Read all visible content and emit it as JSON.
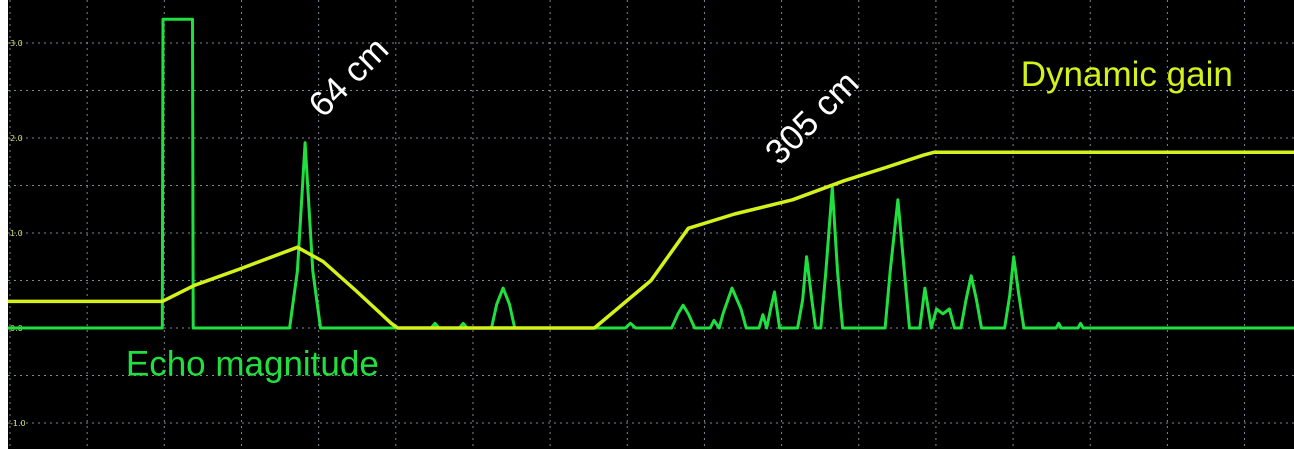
{
  "chart_data": {
    "type": "line",
    "title": "",
    "xlabel": "",
    "ylabel": "",
    "ylim": [
      -1.1,
      3.3
    ],
    "xlim": [
      0,
      100
    ],
    "grid": true,
    "y_ticks": [
      {
        "value": 3.0,
        "label": "3.0"
      },
      {
        "value": 2.0,
        "label": "2.0"
      },
      {
        "value": 1.0,
        "label": "1.0"
      },
      {
        "value": 0.0,
        "label": "0.0"
      },
      {
        "value": -1.0,
        "label": "-1.0"
      }
    ],
    "x_grid": [
      0,
      6,
      12,
      18,
      24,
      30,
      36,
      42,
      48,
      54,
      60,
      66,
      72,
      78,
      84,
      90,
      96,
      100
    ],
    "series": [
      {
        "name": "Echo magnitude",
        "color": "#20e040",
        "points": [
          [
            0,
            0
          ],
          [
            12.0,
            0
          ],
          [
            12.05,
            3.25
          ],
          [
            14.35,
            3.25
          ],
          [
            14.4,
            0
          ],
          [
            21.9,
            0
          ],
          [
            22.5,
            0.6
          ],
          [
            23.1,
            1.95
          ],
          [
            23.7,
            0.6
          ],
          [
            24.3,
            0
          ],
          [
            32.9,
            0
          ],
          [
            33.2,
            0.05
          ],
          [
            33.5,
            0
          ],
          [
            35.1,
            0
          ],
          [
            35.4,
            0.05
          ],
          [
            35.7,
            0
          ],
          [
            37.6,
            0
          ],
          [
            38.0,
            0.25
          ],
          [
            38.5,
            0.42
          ],
          [
            39.0,
            0.25
          ],
          [
            39.4,
            0
          ],
          [
            48.0,
            0
          ],
          [
            48.4,
            0.05
          ],
          [
            48.8,
            0
          ],
          [
            51.6,
            0
          ],
          [
            52.1,
            0.15
          ],
          [
            52.5,
            0.24
          ],
          [
            52.9,
            0.15
          ],
          [
            53.4,
            0
          ],
          [
            54.6,
            0
          ],
          [
            54.9,
            0.08
          ],
          [
            55.3,
            0
          ],
          [
            55.6,
            0.15
          ],
          [
            56.3,
            0.42
          ],
          [
            57.0,
            0.2
          ],
          [
            57.4,
            0
          ],
          [
            58.4,
            0
          ],
          [
            58.7,
            0.14
          ],
          [
            59.0,
            0
          ],
          [
            59.3,
            0.2
          ],
          [
            59.6,
            0.38
          ],
          [
            60.0,
            0
          ],
          [
            61.4,
            0
          ],
          [
            61.8,
            0.3
          ],
          [
            62.1,
            0.75
          ],
          [
            62.5,
            0.3
          ],
          [
            62.8,
            0
          ],
          [
            63.2,
            0
          ],
          [
            63.6,
            0.6
          ],
          [
            64.1,
            1.48
          ],
          [
            64.5,
            0.6
          ],
          [
            64.9,
            0
          ],
          [
            68.2,
            0
          ],
          [
            68.6,
            0.6
          ],
          [
            69.2,
            1.35
          ],
          [
            69.7,
            0.6
          ],
          [
            70.1,
            0
          ],
          [
            70.9,
            0
          ],
          [
            71.3,
            0.42
          ],
          [
            71.8,
            0
          ],
          [
            72.2,
            0.2
          ],
          [
            72.7,
            0.15
          ],
          [
            73.2,
            0.2
          ],
          [
            73.6,
            0
          ],
          [
            74.1,
            0
          ],
          [
            74.5,
            0.3
          ],
          [
            74.9,
            0.55
          ],
          [
            75.3,
            0.3
          ],
          [
            75.7,
            0
          ],
          [
            77.5,
            0
          ],
          [
            77.9,
            0.35
          ],
          [
            78.2,
            0.75
          ],
          [
            78.6,
            0.35
          ],
          [
            79.0,
            0
          ],
          [
            81.5,
            0
          ],
          [
            81.7,
            0.05
          ],
          [
            81.9,
            0
          ],
          [
            83.2,
            0
          ],
          [
            83.4,
            0.05
          ],
          [
            83.6,
            0
          ],
          [
            100,
            0
          ]
        ]
      },
      {
        "name": "Dynamic gain",
        "color": "#d4f21a",
        "points": [
          [
            0,
            0.28
          ],
          [
            12.0,
            0.28
          ],
          [
            14.5,
            0.45
          ],
          [
            18.0,
            0.62
          ],
          [
            22.5,
            0.85
          ],
          [
            24.5,
            0.7
          ],
          [
            27.0,
            0.4
          ],
          [
            29.8,
            0.05
          ],
          [
            30.3,
            0.0
          ],
          [
            45.6,
            0.0
          ],
          [
            50.0,
            0.5
          ],
          [
            52.9,
            1.05
          ],
          [
            56.5,
            1.2
          ],
          [
            61.0,
            1.35
          ],
          [
            65.0,
            1.55
          ],
          [
            68.5,
            1.7
          ],
          [
            71.2,
            1.82
          ],
          [
            72.0,
            1.85
          ],
          [
            100,
            1.85
          ]
        ]
      }
    ],
    "annotations": [
      {
        "text": "64 cm",
        "x": 24.5,
        "y": 2.2,
        "color": "#ffffff"
      },
      {
        "text": "305 cm",
        "x": 60.0,
        "y": 1.7,
        "color": "#ffffff"
      },
      {
        "text": "Dynamic gain",
        "x": 87.0,
        "y": 2.55,
        "color": "#d4f21a"
      },
      {
        "text": "Echo magnitude",
        "x": 19.0,
        "y": -0.5,
        "color": "#20e040"
      }
    ]
  }
}
